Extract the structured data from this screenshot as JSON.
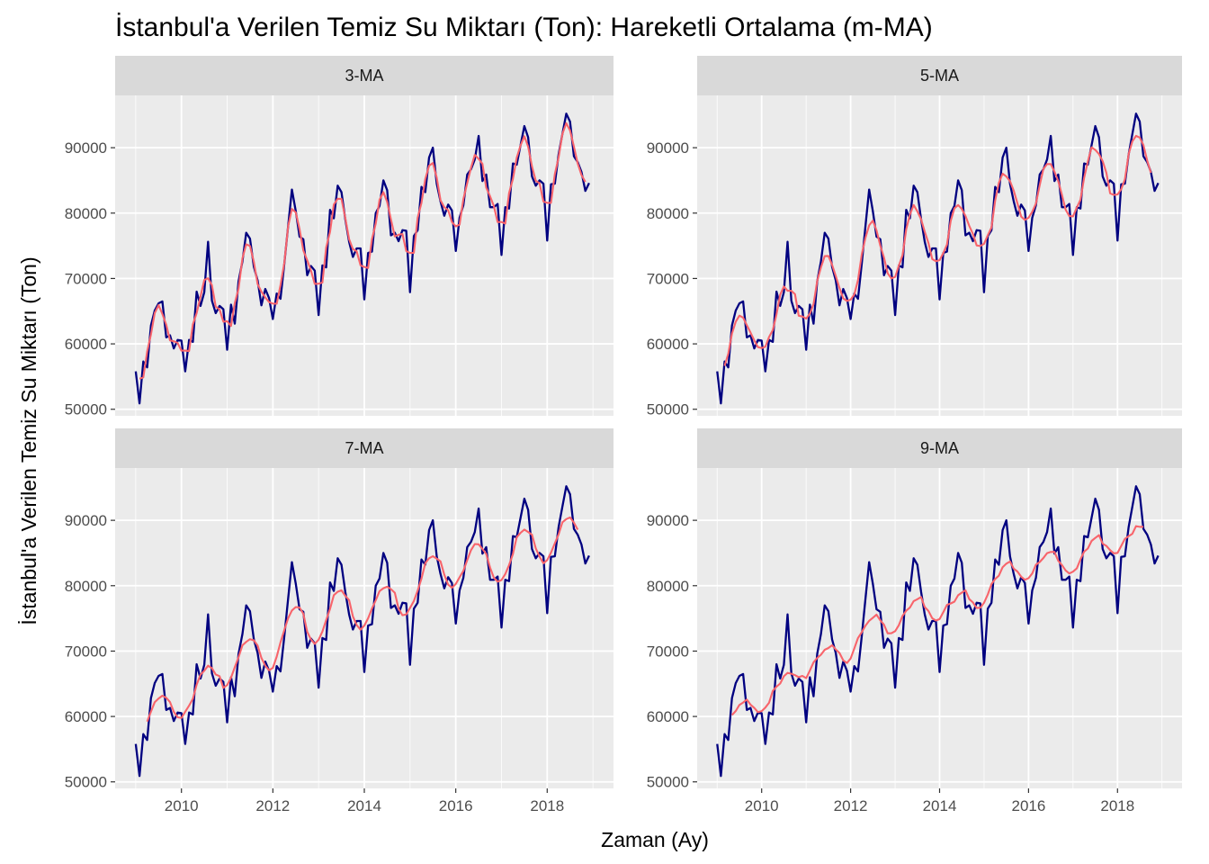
{
  "chart_data": {
    "type": "line",
    "title": "İstanbul'a Verilen Temiz Su Miktarı (Ton): Hareketli Ortalama (m-MA)",
    "xlabel": "Zaman (Ay)",
    "ylabel": "İstanbul'a Verilen Temiz Su Miktarı (Ton)",
    "xlim": [
      2008.55,
      2019.45
    ],
    "ylim": [
      49000,
      98000
    ],
    "x_ticks": [
      2010,
      2012,
      2014,
      2016,
      2018
    ],
    "y_ticks": [
      50000,
      60000,
      70000,
      80000,
      90000
    ],
    "grid": true,
    "x_start": 2009.0,
    "x_step": 0.0833333,
    "colors": {
      "observed": "#000080",
      "moving_average": "#F8646B",
      "panel_background": "#EBEBEB",
      "strip_background": "#D9D9D9",
      "grid": "#FFFFFF"
    },
    "observed": [
      55800,
      50900,
      57300,
      56400,
      62800,
      65100,
      66200,
      66500,
      61000,
      61300,
      59300,
      60600,
      60500,
      55800,
      60600,
      60300,
      68000,
      65800,
      67900,
      75600,
      66600,
      64700,
      65800,
      65300,
      59100,
      66000,
      63100,
      69600,
      72600,
      77000,
      76100,
      71800,
      69700,
      65900,
      68400,
      67000,
      63800,
      67700,
      66900,
      72300,
      78000,
      83600,
      80300,
      76400,
      76000,
      70500,
      71900,
      71200,
      64400,
      72000,
      71700,
      80500,
      79200,
      84200,
      83200,
      79100,
      75600,
      73300,
      74600,
      74600,
      66800,
      73900,
      74100,
      80000,
      81100,
      85000,
      83500,
      76600,
      77000,
      75700,
      77400,
      77300,
      67900,
      76500,
      77400,
      84000,
      83200,
      88500,
      90000,
      84500,
      81800,
      79600,
      81300,
      80400,
      74200,
      79300,
      81200,
      85900,
      86700,
      88200,
      91800,
      84900,
      85900,
      80900,
      80900,
      81400,
      73600,
      80900,
      80700,
      87600,
      87400,
      90400,
      93300,
      91600,
      85600,
      84200,
      85000,
      84500,
      75800,
      84400,
      84500,
      89000,
      92100,
      95200,
      94000,
      88700,
      87800,
      86300,
      83400,
      84600
    ],
    "panels": [
      {
        "label": "3-MA",
        "window": 3
      },
      {
        "label": "5-MA",
        "window": 5
      },
      {
        "label": "7-MA",
        "window": 7
      },
      {
        "label": "9-MA",
        "window": 9
      }
    ]
  }
}
